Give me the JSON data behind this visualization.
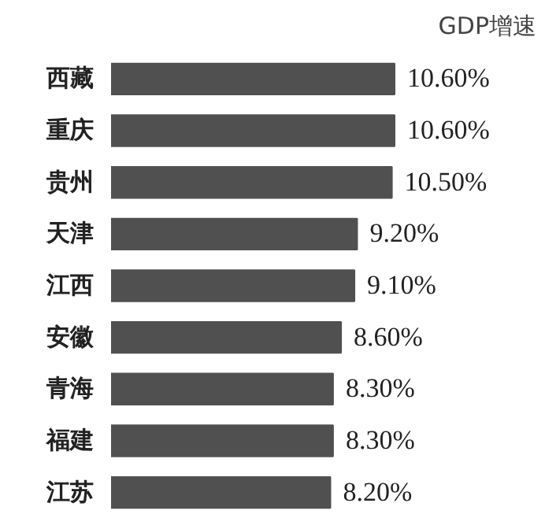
{
  "chart_data": {
    "type": "bar",
    "orientation": "horizontal",
    "title": "GDP增速",
    "categories": [
      "西藏",
      "重庆",
      "贵州",
      "天津",
      "江西",
      "安徽",
      "青海",
      "福建",
      "江苏"
    ],
    "values": [
      10.6,
      10.6,
      10.5,
      9.2,
      9.1,
      8.6,
      8.3,
      8.3,
      8.2
    ],
    "value_labels": [
      "10.60%",
      "10.60%",
      "10.50%",
      "9.20%",
      "9.10%",
      "8.60%",
      "8.30%",
      "8.30%",
      "8.20%"
    ],
    "color": "#505050"
  }
}
